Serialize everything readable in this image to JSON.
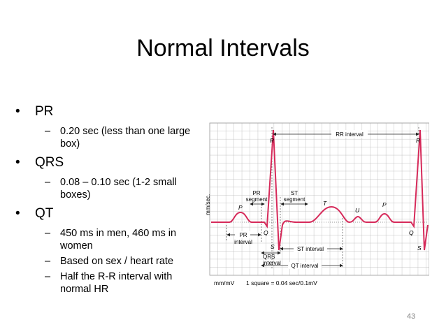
{
  "slide": {
    "title": "Normal Intervals",
    "page_number": "43",
    "bullets": [
      {
        "label": "PR",
        "subs": [
          "0.20 sec (less than one large box)"
        ]
      },
      {
        "label": "QRS",
        "subs": [
          "0.08 – 0.10 sec (1-2 small boxes)"
        ]
      },
      {
        "label": "QT",
        "subs": [
          "450 ms in men, 460 ms in women",
          "Based on sex / heart rate",
          "Half the R-R interval with normal HR"
        ]
      }
    ]
  },
  "ecg": {
    "rr_interval": "RR interval",
    "r1": "R",
    "r2": "R",
    "p1": "P",
    "p2": "P",
    "q1": "Q",
    "q2": "Q",
    "s1": "S",
    "s2": "S",
    "t": "T",
    "u": "U",
    "pr_segment_1": "PR",
    "pr_segment_2": "segment",
    "st_segment_1": "ST",
    "st_segment_2": "segment",
    "pr_interval_1": "PR",
    "pr_interval_2": "interval",
    "qrs_1": "QRS",
    "qrs_2": "interval",
    "st_interval": "ST interval",
    "qt_interval": "QT interval",
    "y_axis_label": "mm/sec.",
    "footer_left": "mm/mV",
    "footer_right": "1 square = 0.04 sec/0.1mV",
    "trace_color": "#d62a5a",
    "grid_color": "#b4b4b4"
  }
}
